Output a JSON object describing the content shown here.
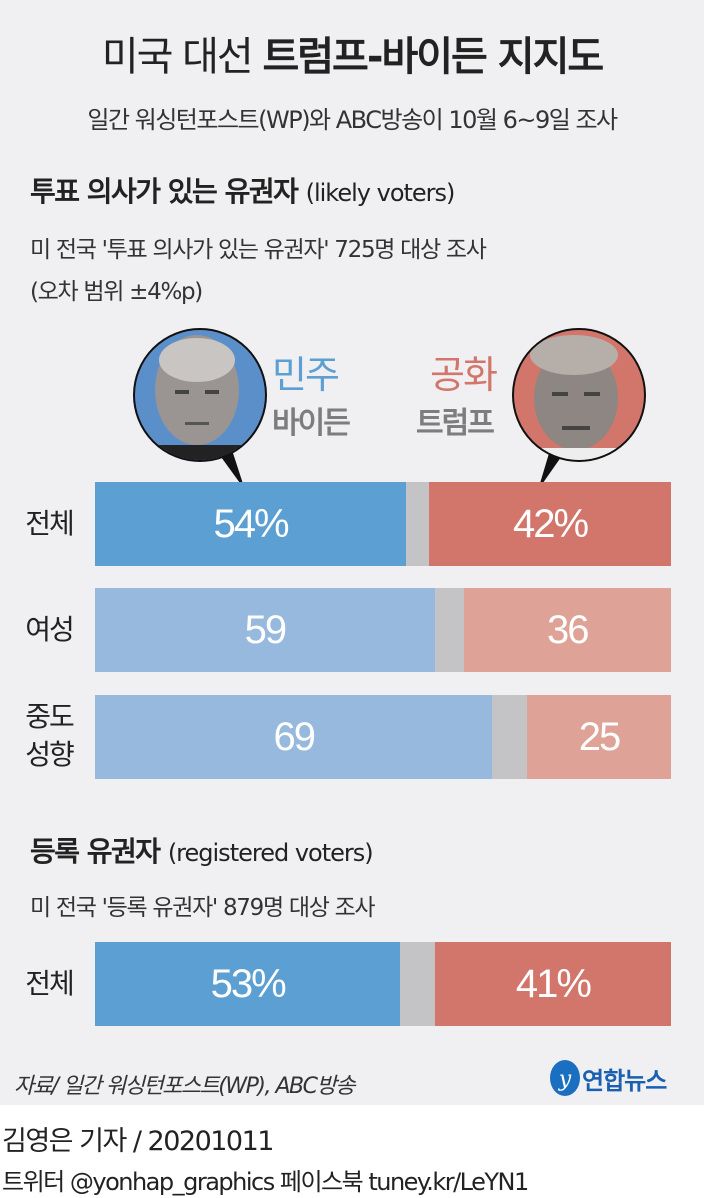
{
  "title_light": "미국 대선",
  "title_bold": "트럼프-바이든 지지도",
  "subtitle": "일간 워싱턴포스트(WP)와 ABC방송이 10월 6~9일 조사",
  "section1": {
    "title": "투표 의사가 있는 유권자",
    "title_en": "(likely voters)",
    "note1": "미 전국 '투표 의사가 있는 유권자' 725명 대상 조사",
    "note2": "(오차 범위 ±4%p)"
  },
  "section2": {
    "title": "등록 유권자",
    "title_en": "(registered voters)",
    "note1": "미 전국 '등록 유권자' 879명 대상 조사"
  },
  "candidates": {
    "dem": {
      "party": "민주",
      "name": "바이든",
      "color": "#5b9fd3",
      "light_color": "#97b9de",
      "icon": "biden-portrait"
    },
    "rep": {
      "party": "공화",
      "name": "트럼프",
      "color": "#d2766b",
      "light_color": "#dea296",
      "icon": "trump-portrait"
    },
    "other_color": "#c4c4c6"
  },
  "chart_data": {
    "type": "bar",
    "stacked": true,
    "orientation": "horizontal",
    "unit": "%",
    "xlim": [
      0,
      100
    ],
    "groups": [
      {
        "title": "투표 의사가 있는 유권자 (likely voters)",
        "categories": [
          "전체",
          "여성",
          "중도 성향"
        ],
        "labels": [
          [
            "54%",
            "42%"
          ],
          [
            "59",
            "36"
          ],
          [
            "69",
            "25"
          ]
        ],
        "series": [
          {
            "name": "민주 바이든",
            "values": [
              54,
              59,
              69
            ]
          },
          {
            "name": "공화 트럼프",
            "values": [
              42,
              36,
              25
            ]
          }
        ]
      },
      {
        "title": "등록 유권자 (registered voters)",
        "categories": [
          "전체"
        ],
        "labels": [
          [
            "53%",
            "41%"
          ]
        ],
        "series": [
          {
            "name": "민주 바이든",
            "values": [
              53
            ]
          },
          {
            "name": "공화 트럼프",
            "values": [
              41
            ]
          }
        ]
      }
    ]
  },
  "row_labels": {
    "r0": "전체",
    "r1": "여성",
    "r2a": "중도",
    "r2b": "성향",
    "r3": "전체"
  },
  "source": "자료/ 일간 워싱턴포스트(WP), ABC방송",
  "logo": "연합뉴스",
  "byline": "김영은 기자 / 20201011",
  "social": "트위터 @yonhap_graphics  페이스북 tuney.kr/LeYN1"
}
